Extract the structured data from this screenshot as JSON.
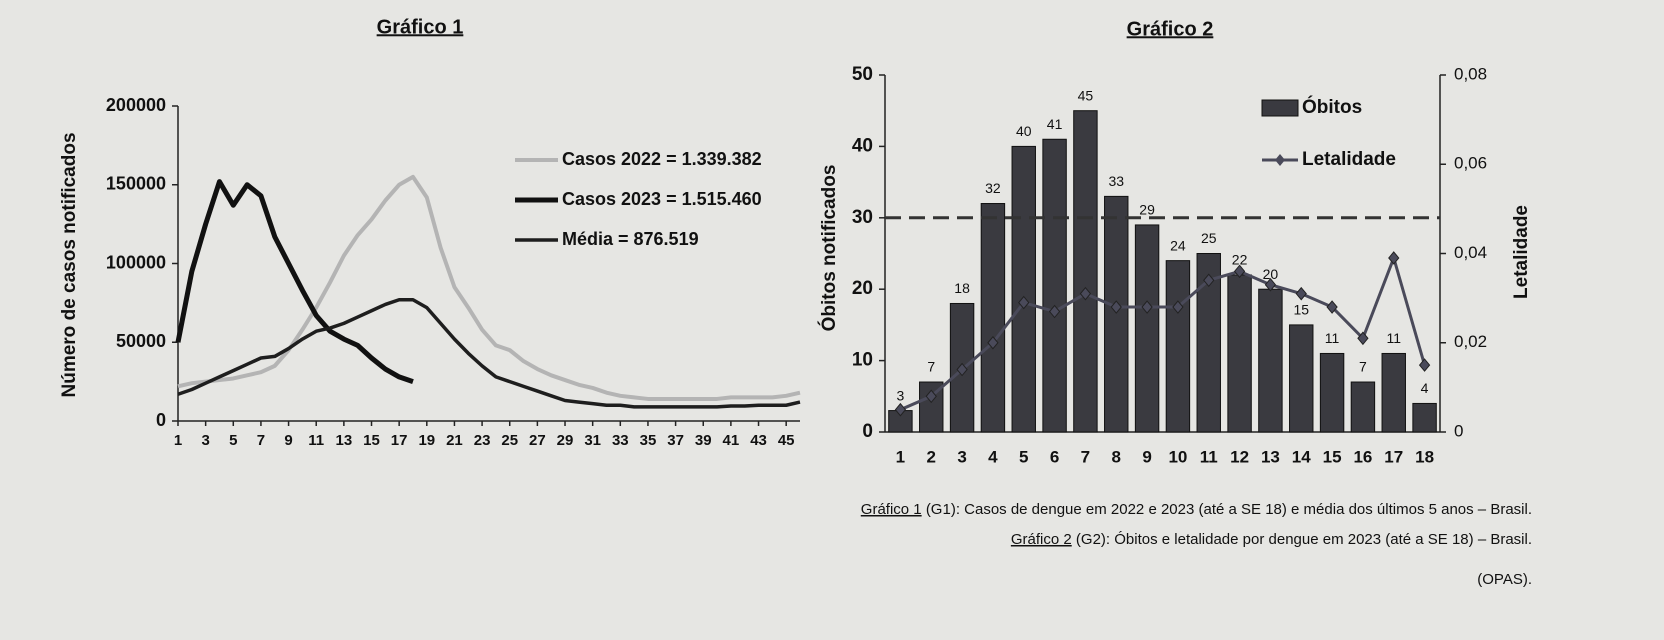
{
  "chart_data": [
    {
      "type": "line",
      "title": "Gráfico 1",
      "y_label": "Número de casos notificados",
      "x": [
        1,
        2,
        3,
        4,
        5,
        6,
        7,
        8,
        9,
        10,
        11,
        12,
        13,
        14,
        15,
        16,
        17,
        18,
        19,
        20,
        21,
        22,
        23,
        24,
        25,
        26,
        27,
        28,
        29,
        30,
        31,
        32,
        33,
        34,
        35,
        36,
        37,
        38,
        39,
        40,
        41,
        42,
        43,
        44,
        45,
        46
      ],
      "xlim": [
        1,
        46
      ],
      "xticks": [
        1,
        3,
        5,
        7,
        9,
        11,
        13,
        15,
        17,
        19,
        21,
        23,
        25,
        27,
        29,
        31,
        33,
        35,
        37,
        39,
        41,
        43,
        45
      ],
      "ylim": [
        0,
        200000
      ],
      "yticks": [
        0,
        50000,
        100000,
        150000,
        200000
      ],
      "series": [
        {
          "name": "Casos 2022 = 1.339.382",
          "color": "#b4b4b4",
          "values": [
            22000,
            24000,
            25000,
            26000,
            27000,
            29000,
            31000,
            35000,
            45000,
            58000,
            72000,
            88000,
            105000,
            118000,
            128000,
            140000,
            150000,
            155000,
            142000,
            110000,
            85000,
            72000,
            58000,
            48000,
            45000,
            38000,
            33000,
            29000,
            26000,
            23000,
            21000,
            18000,
            16000,
            15000,
            14000,
            14000,
            14000,
            14000,
            14000,
            14000,
            15000,
            15000,
            15000,
            15000,
            16000,
            18000
          ]
        },
        {
          "name": "Casos 2023 = 1.515.460",
          "color": "#111111",
          "values": [
            50000,
            95000,
            125000,
            152000,
            137000,
            150000,
            143000,
            117000,
            100000,
            83000,
            67000,
            57000,
            52000,
            48000,
            40000,
            33000,
            28000,
            25000,
            null,
            null,
            null,
            null,
            null,
            null,
            null,
            null,
            null,
            null,
            null,
            null,
            null,
            null,
            null,
            null,
            null,
            null,
            null,
            null,
            null,
            null,
            null,
            null,
            null,
            null,
            null,
            null
          ]
        },
        {
          "name": "Média = 876.519",
          "color": "#1e1e1e",
          "values": [
            17000,
            20000,
            24000,
            28000,
            32000,
            36000,
            40000,
            41000,
            46000,
            52000,
            57000,
            59000,
            62000,
            66000,
            70000,
            74000,
            77000,
            77000,
            72000,
            62000,
            52000,
            43000,
            35000,
            28000,
            25000,
            22000,
            19000,
            16000,
            13000,
            12000,
            11000,
            10000,
            10000,
            9000,
            9000,
            9000,
            9000,
            9000,
            9000,
            9000,
            9500,
            9500,
            10000,
            10000,
            10000,
            12000
          ]
        }
      ]
    },
    {
      "type": "bar_line",
      "title": "Gráfico 2",
      "y_label": "Óbitos notificados",
      "y2_label": "Letalidade",
      "categories": [
        "1",
        "2",
        "3",
        "4",
        "5",
        "6",
        "7",
        "8",
        "9",
        "10",
        "11",
        "12",
        "13",
        "14",
        "15",
        "16",
        "17",
        "18"
      ],
      "ylim": [
        0,
        50
      ],
      "yticks": [
        0,
        10,
        20,
        30,
        40,
        50
      ],
      "y2lim": [
        0,
        0.08
      ],
      "y2ticks": [
        0,
        {
          "value": 0.02,
          "label": "0,02"
        },
        {
          "value": 0.04,
          "label": "0,04"
        },
        {
          "value": 0.06,
          "label": "0,06"
        },
        {
          "value": 0.08,
          "label": "0,08"
        }
      ],
      "reference_line": 30,
      "series": [
        {
          "name": "Óbitos",
          "color": "#3a3a40",
          "values": [
            3,
            7,
            18,
            32,
            40,
            41,
            45,
            33,
            29,
            24,
            25,
            22,
            20,
            15,
            11,
            7,
            11,
            4
          ]
        },
        {
          "name": "Letalidade",
          "color": "#4a4a5a",
          "axis": "y2",
          "values": [
            0.005,
            0.008,
            0.014,
            0.02,
            0.029,
            0.027,
            0.031,
            0.028,
            0.028,
            0.028,
            0.034,
            0.036,
            0.033,
            0.031,
            0.028,
            0.021,
            0.039,
            0.015
          ]
        }
      ]
    }
  ],
  "captions": [
    {
      "link": "Gráfico 1",
      "text": "(G1): Casos de dengue em 2022 e 2023 (até a SE 18) e média dos últimos 5 anos – Brasil."
    },
    {
      "link": "Gráfico 2",
      "text": "(G2): Óbitos e letalidade por dengue em 2023 (até a SE 18) – Brasil."
    }
  ],
  "source": "(OPAS)."
}
